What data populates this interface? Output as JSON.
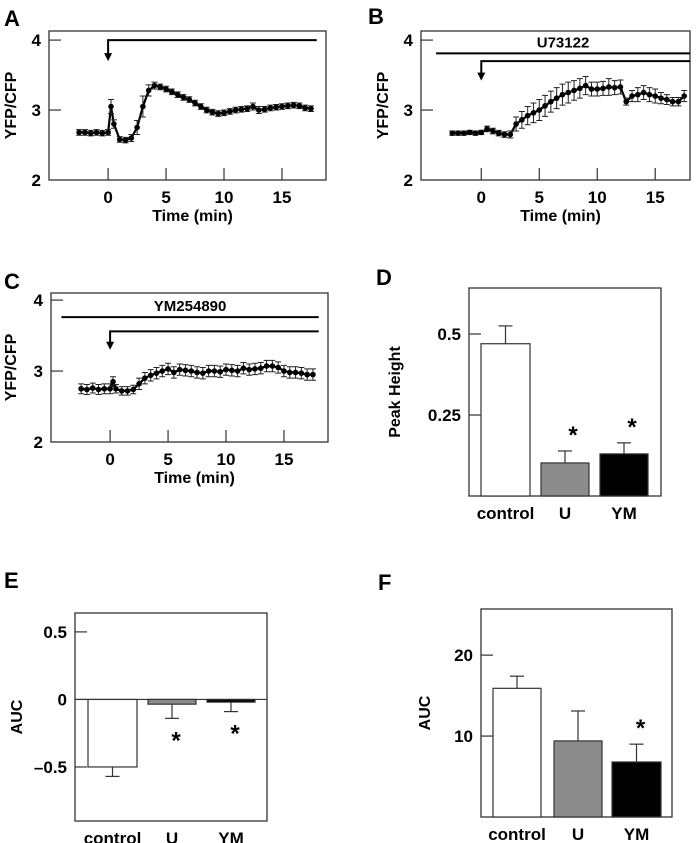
{
  "chart_data": [
    {
      "panel": "A",
      "type": "line",
      "xlabel": "Time (min)",
      "ylabel": "YFP/CFP",
      "xlim": [
        -5.1,
        18.8
      ],
      "ylim": [
        2,
        4.13
      ],
      "xticks": [
        0,
        5,
        10,
        15
      ],
      "yticks": [
        2,
        3,
        4
      ],
      "stimulus": {
        "start": 0,
        "end": 18
      },
      "drug": null,
      "series": {
        "x": [
          -2.5,
          -2,
          -1.5,
          -1,
          -0.5,
          0,
          0.25,
          0.5,
          1,
          1.5,
          2,
          2.5,
          3,
          3.5,
          4,
          4.5,
          5,
          5.5,
          6,
          6.5,
          7,
          7.5,
          8,
          8.5,
          9,
          9.5,
          10,
          10.5,
          11,
          11.5,
          12,
          12.5,
          13,
          13.5,
          14,
          14.5,
          15,
          15.5,
          16,
          16.5,
          17,
          17.5
        ],
        "y": [
          2.68,
          2.68,
          2.67,
          2.68,
          2.67,
          2.68,
          3.05,
          2.8,
          2.58,
          2.57,
          2.6,
          2.75,
          3.05,
          3.28,
          3.35,
          3.33,
          3.3,
          3.26,
          3.22,
          3.18,
          3.15,
          3.1,
          3.05,
          3.0,
          2.97,
          2.95,
          2.96,
          2.98,
          3.0,
          3.01,
          3.02,
          3.05,
          3.0,
          3.01,
          3.03,
          3.04,
          3.05,
          3.06,
          3.07,
          3.06,
          3.03,
          3.02
        ],
        "err": [
          0.04,
          0.04,
          0.04,
          0.04,
          0.04,
          0.04,
          0.1,
          0.06,
          0.04,
          0.04,
          0.05,
          0.1,
          0.15,
          0.08,
          0.05,
          0.04,
          0.04,
          0.04,
          0.04,
          0.04,
          0.04,
          0.04,
          0.04,
          0.04,
          0.04,
          0.04,
          0.04,
          0.04,
          0.04,
          0.04,
          0.04,
          0.05,
          0.05,
          0.04,
          0.04,
          0.04,
          0.04,
          0.04,
          0.04,
          0.04,
          0.04,
          0.04
        ]
      }
    },
    {
      "panel": "B",
      "type": "line",
      "xlabel": "Time (min)",
      "ylabel": "YFP/CFP",
      "xlim": [
        -5.2,
        18.0
      ],
      "ylim": [
        2,
        4.13
      ],
      "xticks": [
        0,
        5,
        10,
        15
      ],
      "yticks": [
        2,
        3,
        4
      ],
      "stimulus": {
        "start": 0,
        "end": 18
      },
      "drug": {
        "label": "U73122",
        "start": -3.9,
        "end": 18
      },
      "series": {
        "x": [
          -2.5,
          -2,
          -1.5,
          -1,
          -0.5,
          0,
          0.5,
          1,
          1.5,
          2,
          2.5,
          3,
          3.5,
          4,
          4.5,
          5,
          5.5,
          6,
          6.5,
          7,
          7.5,
          8,
          8.5,
          9,
          9.5,
          10,
          10.5,
          11,
          11.5,
          12,
          12.5,
          13,
          13.5,
          14,
          14.5,
          15,
          15.5,
          16,
          16.5,
          17,
          17.5
        ],
        "y": [
          2.67,
          2.67,
          2.67,
          2.68,
          2.67,
          2.68,
          2.73,
          2.7,
          2.67,
          2.65,
          2.65,
          2.8,
          2.86,
          2.92,
          2.96,
          3.0,
          3.06,
          3.12,
          3.17,
          3.22,
          3.25,
          3.28,
          3.31,
          3.35,
          3.3,
          3.3,
          3.31,
          3.33,
          3.32,
          3.33,
          3.12,
          3.2,
          3.22,
          3.25,
          3.22,
          3.2,
          3.17,
          3.15,
          3.12,
          3.12,
          3.2
        ],
        "err": [
          0.03,
          0.03,
          0.03,
          0.03,
          0.03,
          0.03,
          0.04,
          0.04,
          0.04,
          0.04,
          0.05,
          0.1,
          0.12,
          0.13,
          0.14,
          0.15,
          0.15,
          0.15,
          0.15,
          0.15,
          0.15,
          0.14,
          0.14,
          0.13,
          0.1,
          0.1,
          0.1,
          0.12,
          0.1,
          0.1,
          0.05,
          0.08,
          0.1,
          0.1,
          0.1,
          0.1,
          0.08,
          0.07,
          0.06,
          0.06,
          0.08
        ]
      }
    },
    {
      "panel": "C",
      "type": "line",
      "xlabel": "Time (min)",
      "ylabel": "YFP/CFP",
      "xlim": [
        -5.1,
        18.8
      ],
      "ylim": [
        2,
        4.1
      ],
      "xticks": [
        0,
        5,
        10,
        15
      ],
      "yticks": [
        2,
        3,
        4
      ],
      "stimulus": {
        "start": 0,
        "end": 18
      },
      "drug": {
        "label": "YM254890",
        "start": -4.2,
        "end": 18
      },
      "series": {
        "x": [
          -2.5,
          -2,
          -1.5,
          -1,
          -0.5,
          0,
          0.25,
          0.5,
          1,
          1.5,
          2,
          2.5,
          3,
          3.5,
          4,
          4.5,
          5,
          5.5,
          6,
          6.5,
          7,
          7.5,
          8,
          8.5,
          9,
          9.5,
          10,
          10.5,
          11,
          11.5,
          12,
          12.5,
          13,
          13.5,
          14,
          14.5,
          15,
          15.5,
          16,
          16.5,
          17,
          17.5
        ],
        "y": [
          2.75,
          2.74,
          2.76,
          2.74,
          2.75,
          2.75,
          2.85,
          2.75,
          2.72,
          2.72,
          2.74,
          2.82,
          2.9,
          2.94,
          2.97,
          3.0,
          3.03,
          2.98,
          3.02,
          3.01,
          3.0,
          2.98,
          2.97,
          3.0,
          3.0,
          2.99,
          3.02,
          3.01,
          3.0,
          3.04,
          3.02,
          3.03,
          3.04,
          3.07,
          3.07,
          3.05,
          3.0,
          2.98,
          2.98,
          2.97,
          2.95,
          2.95
        ],
        "err": [
          0.07,
          0.07,
          0.07,
          0.07,
          0.07,
          0.07,
          0.07,
          0.06,
          0.06,
          0.06,
          0.06,
          0.08,
          0.08,
          0.08,
          0.08,
          0.08,
          0.08,
          0.08,
          0.08,
          0.08,
          0.08,
          0.08,
          0.08,
          0.08,
          0.08,
          0.08,
          0.08,
          0.08,
          0.08,
          0.08,
          0.08,
          0.08,
          0.08,
          0.08,
          0.08,
          0.08,
          0.08,
          0.08,
          0.08,
          0.08,
          0.08,
          0.08
        ]
      }
    },
    {
      "panel": "D",
      "type": "bar",
      "ylabel": "Peak Height",
      "ylim": [
        0,
        0.642
      ],
      "yticks": [
        0.25,
        0.5
      ],
      "ytick_labels": [
        "0.25",
        "0.5"
      ],
      "categories": [
        "control",
        "U",
        "YM"
      ],
      "values": [
        0.47,
        0.102,
        0.13
      ],
      "errors": [
        0.055,
        0.037,
        0.034
      ],
      "significant": [
        false,
        true,
        true
      ],
      "colors": [
        "#ffffff",
        "#8c8c8c",
        "#000000"
      ]
    },
    {
      "panel": "E",
      "type": "bar",
      "ylabel": "AUC",
      "ylim": [
        -0.9,
        0.64
      ],
      "yticks": [
        -0.5,
        0,
        0.5
      ],
      "ytick_labels": [
        "–0.5",
        "0",
        "0.5"
      ],
      "categories": [
        "control",
        "U",
        "YM"
      ],
      "values": [
        -0.5,
        -0.035,
        -0.02
      ],
      "errors": [
        0.07,
        0.105,
        0.07
      ],
      "significant": [
        false,
        true,
        true
      ],
      "colors": [
        "#ffffff",
        "#8c8c8c",
        "#000000"
      ]
    },
    {
      "panel": "F",
      "type": "bar",
      "ylabel": "AUC",
      "ylim": [
        0,
        25.7
      ],
      "yticks": [
        10,
        20
      ],
      "ytick_labels": [
        "10",
        "20"
      ],
      "categories": [
        "control",
        "U",
        "YM"
      ],
      "values": [
        15.9,
        9.4,
        6.8
      ],
      "errors": [
        1.5,
        3.7,
        2.2
      ],
      "significant": [
        false,
        false,
        true
      ],
      "colors": [
        "#ffffff",
        "#8c8c8c",
        "#000000"
      ]
    }
  ],
  "significance_marker": "*"
}
